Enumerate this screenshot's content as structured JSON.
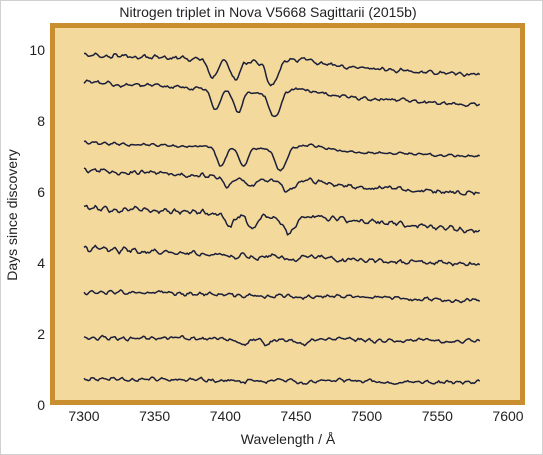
{
  "chart_data": {
    "type": "line",
    "title": "Nitrogen triplet in Nova V5668 Sagittarii (2015b)",
    "xlabel": "Wavelength / Å",
    "ylabel": "Days since discovery",
    "xlim": [
      7275,
      7600
    ],
    "ylim": [
      0,
      10.8
    ],
    "xticks": [
      7300,
      7350,
      7400,
      7450,
      7500,
      7550,
      7600
    ],
    "yticks": [
      0,
      2,
      4,
      6,
      8,
      10
    ],
    "grid": false,
    "plot_background": "#f3d99b",
    "frame_color": "#c98e2e",
    "line_color": "#1c1f3a",
    "absorption_centers": [
      7400,
      7416,
      7442
    ],
    "series": [
      {
        "day": 0.75,
        "start": 0.75,
        "end": 0.62,
        "depth": 0.08,
        "shift": 12,
        "noise": 0.07,
        "seed": 11
      },
      {
        "day": 1.9,
        "start": 1.9,
        "end": 1.8,
        "depth": 0.16,
        "shift": 13,
        "noise": 0.07,
        "seed": 23
      },
      {
        "day": 2.95,
        "start": 3.2,
        "end": 2.95,
        "depth": 0.05,
        "shift": 10,
        "noise": 0.07,
        "seed": 37
      },
      {
        "day": 3.95,
        "start": 4.4,
        "end": 3.95,
        "depth": 0.06,
        "shift": 5,
        "noise": 0.09,
        "seed": 41
      },
      {
        "day": 5.0,
        "start": 5.6,
        "end": 4.95,
        "depth": 0.42,
        "shift": 3,
        "noise": 0.1,
        "seed": 53
      },
      {
        "day": 6.0,
        "start": 6.65,
        "end": 5.95,
        "depth": 0.25,
        "shift": 2,
        "noise": 0.08,
        "seed": 67
      },
      {
        "day": 7.0,
        "start": 7.4,
        "end": 7.0,
        "depth": 0.6,
        "shift": -3,
        "noise": 0.05,
        "seed": 79
      },
      {
        "day": 8.4,
        "start": 9.1,
        "end": 8.45,
        "depth": 0.65,
        "shift": -7,
        "noise": 0.07,
        "seed": 83
      },
      {
        "day": 9.25,
        "start": 9.9,
        "end": 9.3,
        "depth": 0.6,
        "shift": -9,
        "noise": 0.08,
        "seed": 97
      }
    ]
  }
}
